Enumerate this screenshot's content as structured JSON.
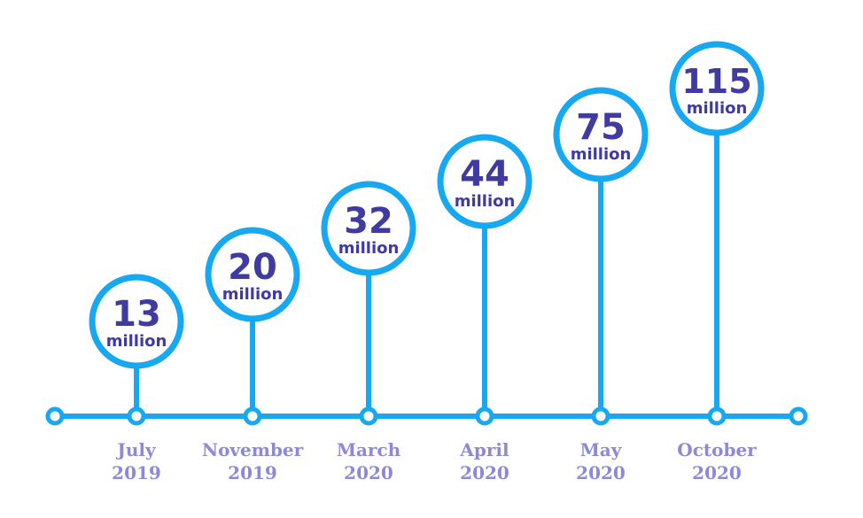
{
  "chart_data": {
    "type": "timeline",
    "title": "",
    "unit": "million",
    "colors": {
      "line": "#16a8f0",
      "value_text": "#3f3ba0",
      "date_text": "#8e88d8"
    },
    "points": [
      {
        "month": "July",
        "year": "2019",
        "value": 13
      },
      {
        "month": "November",
        "year": "2019",
        "value": 20
      },
      {
        "month": "March",
        "year": "2020",
        "value": 32
      },
      {
        "month": "April",
        "year": "2020",
        "value": 44
      },
      {
        "month": "May",
        "year": "2020",
        "value": 75
      },
      {
        "month": "October",
        "year": "2020",
        "value": 115
      }
    ]
  }
}
